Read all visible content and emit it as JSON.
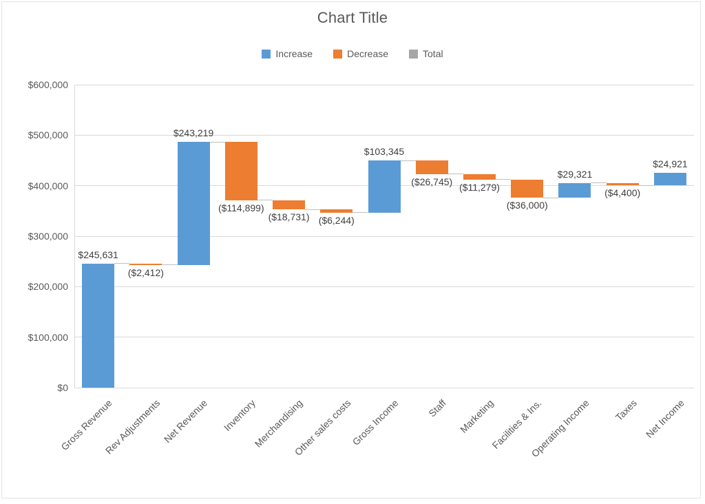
{
  "chart_data": {
    "type": "bar",
    "subtype": "waterfall",
    "title": "Chart Title",
    "legend": {
      "position": "top",
      "items": [
        {
          "label": "Increase",
          "color": "#5B9BD5"
        },
        {
          "label": "Decrease",
          "color": "#ED7D31"
        },
        {
          "label": "Total",
          "color": "#A5A5A5"
        }
      ]
    },
    "categories": [
      "Gross Revenue",
      "Rev Adjustments",
      "Net Revenue",
      "Inventory",
      "Merchandising",
      "Other sales costs",
      "Gross Income",
      "Staff",
      "Marketing",
      "Facilities & Ins.",
      "Operating Income",
      "Taxes",
      "Net Income"
    ],
    "values": [
      245631,
      -2412,
      243219,
      -114899,
      -18731,
      -6244,
      103345,
      -26745,
      -11279,
      -36000,
      29321,
      -4400,
      24921
    ],
    "data_labels": [
      "$245,631",
      "($2,412)",
      "$243,219",
      "($114,899)",
      "($18,731)",
      "($6,244)",
      "$103,345",
      "($26,745)",
      "($11,279)",
      "($36,000)",
      "$29,321",
      "($4,400)",
      "$24,921"
    ],
    "cumulative": [
      245631,
      243219,
      486438,
      371539,
      352808,
      346564,
      449909,
      423164,
      411885,
      375885,
      405206,
      400806,
      425727
    ],
    "y_axis": {
      "min": 0,
      "max": 600000,
      "step": 100000,
      "tick_labels": [
        "$0",
        "$100,000",
        "$200,000",
        "$300,000",
        "$400,000",
        "$500,000",
        "$600,000"
      ]
    },
    "grid": true,
    "colors": {
      "increase": "#5B9BD5",
      "decrease": "#ED7D31",
      "total": "#A5A5A5",
      "gridline": "#D9D9D9",
      "connector": "#BFBFBF",
      "title_text": "#595959",
      "axis_text": "#595959",
      "data_label_text": "#404040"
    }
  }
}
